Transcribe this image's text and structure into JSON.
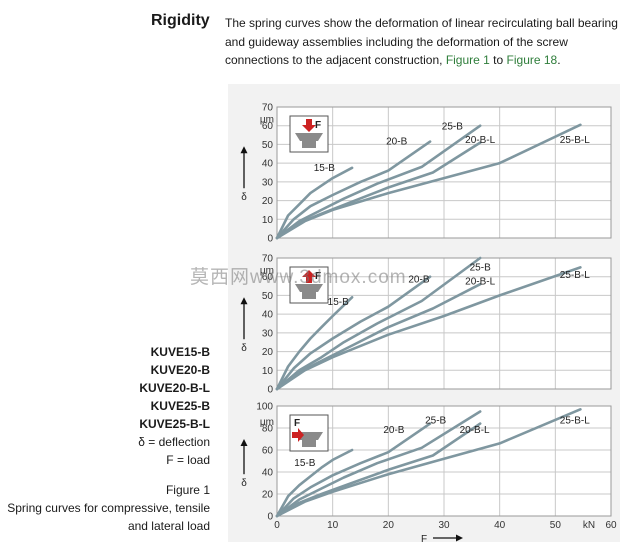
{
  "heading": "Rigidity",
  "intro": {
    "text_before": "The spring curves show the deformation of linear recirculating ball bearing and guideway assemblies including the deformation of the screw connections to the adjacent construction, ",
    "link1": "Figure 1",
    "middle": " to ",
    "link2": "Figure 18",
    "end": "."
  },
  "caption": {
    "products": [
      "KUVE15-B",
      "KUVE20-B",
      "KUVE20-B-L",
      "KUVE25-B",
      "KUVE25-B-L"
    ],
    "legend": [
      "δ = deflection",
      "F = load"
    ],
    "figure_label": "Figure 1",
    "figure_desc": [
      "Spring curves for compressive, tensile",
      "and lateral load"
    ]
  },
  "watermark": "莫西网www.3dmox.com",
  "colors": {
    "curve": "#7f97a0",
    "grid": "#c8c8c8",
    "icon_arrow": "#cc2222",
    "link": "#2e7d3a"
  },
  "chart_data": [
    {
      "type": "line",
      "load_direction": "compressive",
      "icon": "compressive-load-icon",
      "icon_label": "F",
      "ylabel": "δ",
      "yunit": "μm",
      "ylim": [
        0,
        70
      ],
      "yticks": [
        0,
        10,
        20,
        30,
        40,
        50,
        60,
        70
      ],
      "xlim": [
        0,
        60
      ],
      "xticks": [
        0,
        10,
        20,
        30,
        40,
        50,
        60
      ],
      "series": [
        {
          "name": "15-B",
          "x": [
            0,
            2,
            4,
            6,
            8,
            10,
            13.5
          ],
          "y": [
            0,
            12,
            18,
            24,
            28,
            32,
            37.5
          ]
        },
        {
          "name": "20-B",
          "x": [
            0,
            3,
            6,
            10,
            15,
            20,
            27.5
          ],
          "y": [
            0,
            10,
            17,
            23,
            30,
            36,
            51.5
          ]
        },
        {
          "name": "25-B",
          "x": [
            0,
            4,
            8,
            12,
            18,
            26,
            36.5
          ],
          "y": [
            0,
            9,
            15,
            21,
            29,
            38,
            60
          ]
        },
        {
          "name": "20-B-L",
          "x": [
            0,
            4,
            8,
            14,
            20,
            28,
            36.5
          ],
          "y": [
            0,
            8,
            13,
            20,
            27,
            35,
            51
          ]
        },
        {
          "name": "25-B-L",
          "x": [
            0,
            5,
            10,
            20,
            30,
            40,
            54.5
          ],
          "y": [
            0,
            9,
            15,
            24,
            32,
            40,
            60.5
          ]
        }
      ],
      "labels": [
        {
          "name": "15-B",
          "x": 8.5,
          "y": 37.5
        },
        {
          "name": "20-B",
          "x": 21.5,
          "y": 51.5
        },
        {
          "name": "25-B",
          "x": 31.5,
          "y": 59.5
        },
        {
          "name": "20-B-L",
          "x": 36.5,
          "y": 52.5
        },
        {
          "name": "25-B-L",
          "x": 53.5,
          "y": 52.5
        }
      ]
    },
    {
      "type": "line",
      "load_direction": "tensile",
      "icon": "tensile-load-icon",
      "icon_label": "F",
      "ylabel": "δ",
      "yunit": "μm",
      "ylim": [
        0,
        70
      ],
      "yticks": [
        0,
        10,
        20,
        30,
        40,
        50,
        60,
        70
      ],
      "xlim": [
        0,
        60
      ],
      "xticks": [
        0,
        10,
        20,
        30,
        40,
        50,
        60
      ],
      "series": [
        {
          "name": "15-B",
          "x": [
            0,
            2,
            4,
            6,
            8,
            10,
            13.5
          ],
          "y": [
            0,
            12,
            20,
            27,
            33,
            39,
            49
          ]
        },
        {
          "name": "20-B",
          "x": [
            0,
            3,
            6,
            10,
            15,
            20,
            27.5
          ],
          "y": [
            0,
            11,
            19,
            27,
            36,
            44,
            60
          ]
        },
        {
          "name": "25-B",
          "x": [
            0,
            4,
            8,
            12,
            18,
            26,
            36.5
          ],
          "y": [
            0,
            10,
            17,
            25,
            35,
            47,
            70
          ]
        },
        {
          "name": "20-B-L",
          "x": [
            0,
            4,
            8,
            14,
            20,
            28,
            36.5
          ],
          "y": [
            0,
            9,
            15,
            24,
            33,
            43,
            56
          ]
        },
        {
          "name": "25-B-L",
          "x": [
            0,
            5,
            10,
            20,
            30,
            40,
            54.5
          ],
          "y": [
            0,
            10,
            17,
            29,
            39,
            50,
            65
          ]
        }
      ],
      "labels": [
        {
          "name": "15-B",
          "x": 11,
          "y": 46.5
        },
        {
          "name": "20-B",
          "x": 25.5,
          "y": 58.5
        },
        {
          "name": "25-B",
          "x": 36.5,
          "y": 65
        },
        {
          "name": "20-B-L",
          "x": 36.5,
          "y": 57.5
        },
        {
          "name": "25-B-L",
          "x": 53.5,
          "y": 61
        }
      ]
    },
    {
      "type": "line",
      "load_direction": "lateral",
      "icon": "lateral-load-icon",
      "icon_label": "F",
      "ylabel": "δ",
      "yunit": "μm",
      "ylim": [
        0,
        100
      ],
      "yticks": [
        0,
        20,
        40,
        60,
        80,
        100
      ],
      "xlim": [
        0,
        60
      ],
      "xticks": [
        0,
        10,
        20,
        30,
        40,
        50,
        60
      ],
      "xlabel": "F",
      "xunit": "kN",
      "series": [
        {
          "name": "15-B",
          "x": [
            0,
            2,
            4,
            6,
            8,
            10,
            13.5
          ],
          "y": [
            0,
            18,
            28,
            36,
            44,
            51,
            60
          ]
        },
        {
          "name": "20-B",
          "x": [
            0,
            3,
            6,
            10,
            15,
            20,
            27.5
          ],
          "y": [
            0,
            16,
            26,
            37,
            48,
            58,
            84
          ]
        },
        {
          "name": "25-B",
          "x": [
            0,
            4,
            8,
            12,
            18,
            26,
            36.5
          ],
          "y": [
            0,
            15,
            25,
            35,
            48,
            62,
            95
          ]
        },
        {
          "name": "20-B-L",
          "x": [
            0,
            4,
            8,
            14,
            20,
            28,
            36.5
          ],
          "y": [
            0,
            12,
            20,
            31,
            42,
            55,
            84
          ]
        },
        {
          "name": "25-B-L",
          "x": [
            0,
            5,
            10,
            20,
            30,
            40,
            54.5
          ],
          "y": [
            0,
            13,
            22,
            38,
            52,
            66,
            97
          ]
        }
      ],
      "labels": [
        {
          "name": "15-B",
          "x": 5,
          "y": 48
        },
        {
          "name": "20-B",
          "x": 21,
          "y": 78
        },
        {
          "name": "25-B",
          "x": 28.5,
          "y": 87
        },
        {
          "name": "20-B-L",
          "x": 35.5,
          "y": 78
        },
        {
          "name": "25-B-L",
          "x": 53.5,
          "y": 87
        }
      ]
    }
  ]
}
